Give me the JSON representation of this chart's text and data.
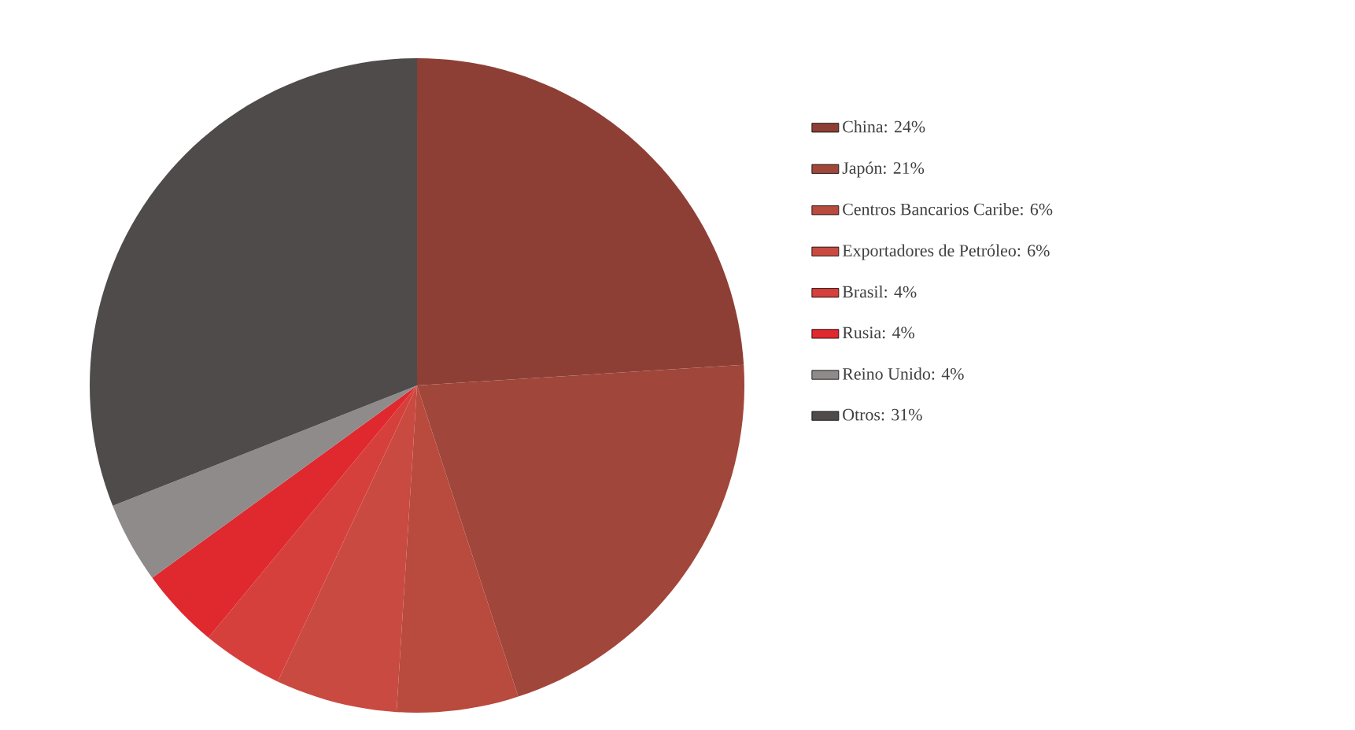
{
  "chart_data": {
    "type": "pie",
    "legend": "right",
    "categories": [
      "China: 24%",
      "Japón: 21%",
      "Centros Bancarios Caribe: 6%",
      "Exportadores de Petróleo: 6%",
      "Brasil: 4%",
      "Rusia: 4%",
      "Reino Unido: 4%",
      "Otros: 31%"
    ],
    "values": [
      24,
      21,
      6,
      6,
      4,
      4,
      4,
      31
    ],
    "colors": [
      "#8e3f35",
      "#a0463b",
      "#b84a3e",
      "#c94a40",
      "#d6403c",
      "#e0282f",
      "#8f8b8b",
      "#4f4b4b"
    ]
  }
}
